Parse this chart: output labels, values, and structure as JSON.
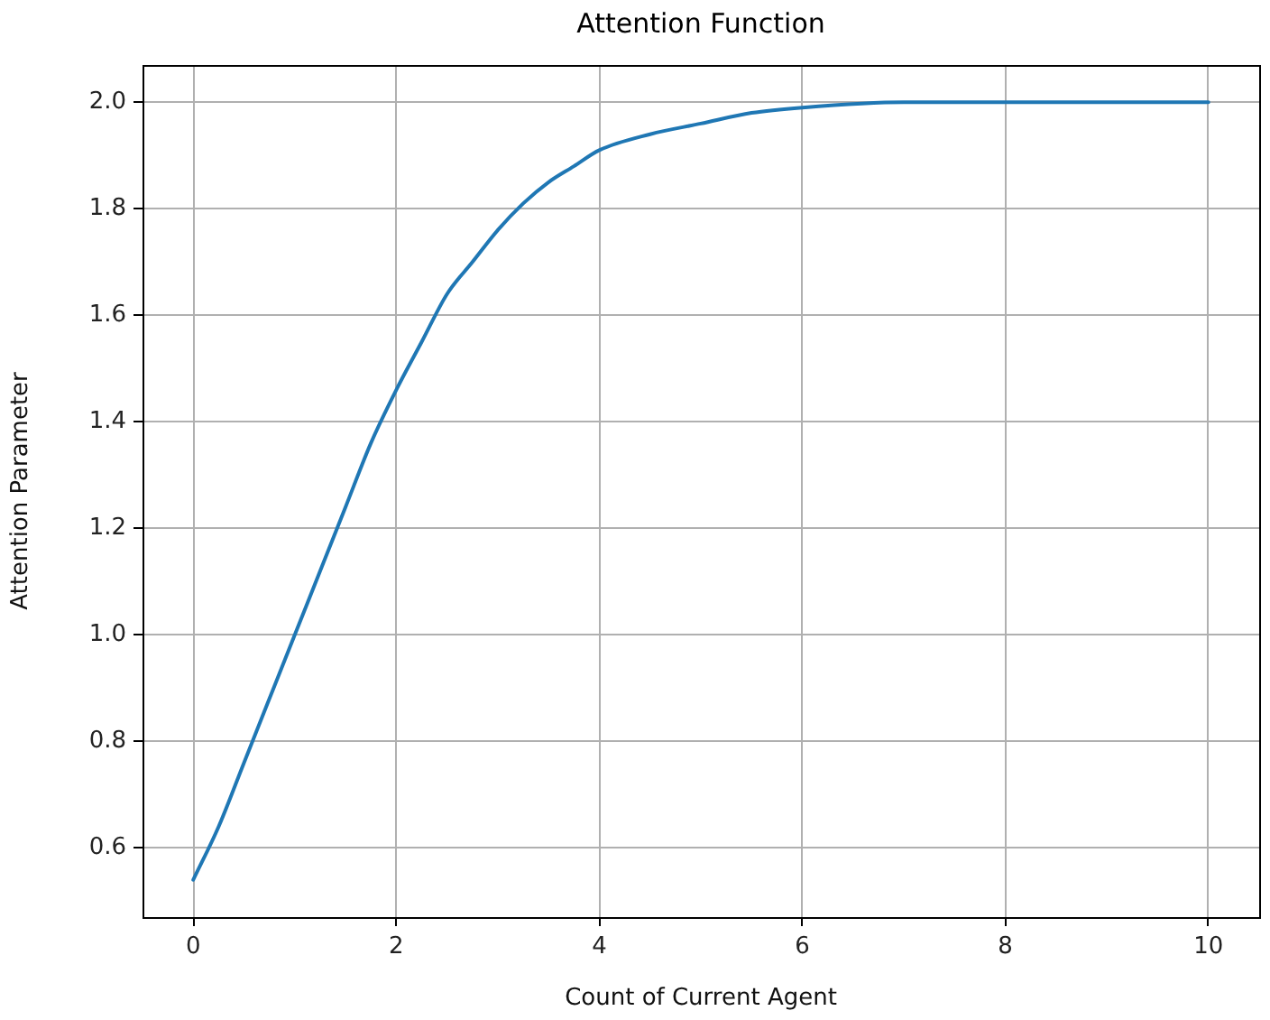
{
  "chart_data": {
    "type": "line",
    "title": "Attention Function",
    "xlabel": "Count of Current Agent",
    "ylabel": "Attention Parameter",
    "x": [
      0,
      0.25,
      0.5,
      0.75,
      1,
      1.25,
      1.5,
      1.75,
      2,
      2.25,
      2.5,
      2.75,
      3,
      3.25,
      3.5,
      3.75,
      4,
      4.5,
      5,
      5.5,
      6,
      7,
      8,
      9,
      10
    ],
    "series": [
      {
        "color": "#1f77b4",
        "values": [
          0.54,
          0.64,
          0.76,
          0.88,
          1.0,
          1.12,
          1.24,
          1.36,
          1.46,
          1.55,
          1.64,
          1.7,
          1.76,
          1.81,
          1.85,
          1.88,
          1.91,
          1.94,
          1.96,
          1.98,
          1.99,
          2.0,
          2.0,
          2.0,
          2.0
        ]
      }
    ],
    "xlim": [
      -0.5,
      10.5
    ],
    "ylim": [
      0.47,
      2.07
    ],
    "xticks": [
      0,
      2,
      4,
      6,
      8,
      10
    ],
    "yticks": [
      0.6,
      0.8,
      {
        "value": 1,
        "label": "1.0"
      },
      1.2,
      1.4,
      1.6,
      1.8,
      {
        "value": 2,
        "label": "2.0"
      }
    ],
    "grid": true,
    "marker": "none",
    "line_style": "solid"
  }
}
